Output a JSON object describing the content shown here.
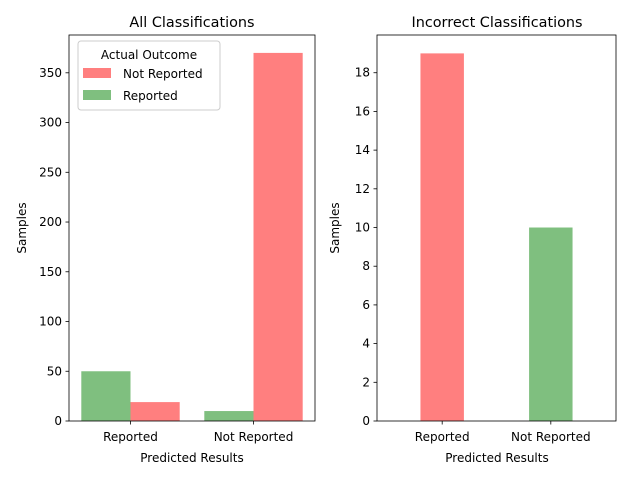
{
  "colors": {
    "not_reported": "#ff7f7f",
    "reported": "#7fbf7f"
  },
  "chart_data": [
    {
      "type": "bar",
      "title": "All Classifications",
      "xlabel": "Predicted Results",
      "ylabel": "Samples",
      "categories": [
        "Reported",
        "Not Reported"
      ],
      "ylim": [
        0,
        388
      ],
      "yticks": [
        "0",
        "50",
        "100",
        "150",
        "200",
        "250",
        "300",
        "350"
      ],
      "legend": {
        "title": "Actual Outcome",
        "placement": "top-left",
        "entries": [
          "Not Reported",
          "Reported"
        ]
      },
      "series": [
        {
          "name": "Reported",
          "color": "#7fbf7f",
          "values": [
            50,
            10
          ]
        },
        {
          "name": "Not Reported",
          "color": "#ff7f7f",
          "values": [
            19,
            370
          ]
        }
      ],
      "grid": false
    },
    {
      "type": "bar",
      "title": "Incorrect Classifications",
      "xlabel": "Predicted Results",
      "ylabel": "Samples",
      "categories": [
        "Reported",
        "Not Reported"
      ],
      "ylim": [
        0,
        19.95
      ],
      "yticks": [
        "0",
        "2",
        "4",
        "6",
        "8",
        "10",
        "12",
        "14",
        "16",
        "18"
      ],
      "bars": [
        {
          "value": 19,
          "color": "#ff7f7f"
        },
        {
          "value": 10,
          "color": "#7fbf7f"
        }
      ],
      "grid": false
    }
  ]
}
